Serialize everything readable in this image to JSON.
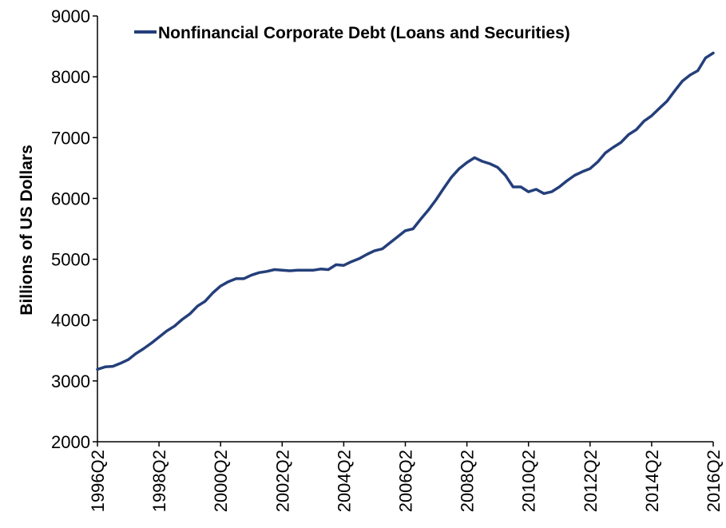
{
  "chart_data": {
    "type": "line",
    "title": "",
    "xlabel": "",
    "ylabel": "Billions of US Dollars",
    "ylim": [
      2000,
      9000
    ],
    "y_ticks": [
      "2000",
      "3000",
      "4000",
      "5000",
      "6000",
      "7000",
      "8000",
      "9000"
    ],
    "x_ticks": [
      "1996Q2",
      "1998Q2",
      "2000Q2",
      "2002Q2",
      "2004Q2",
      "2006Q2",
      "2008Q2",
      "2010Q2",
      "2012Q2",
      "2014Q2",
      "2016Q2"
    ],
    "grid": false,
    "legend_position": "top-left",
    "series": [
      {
        "name": "Nonfinancial Corporate Debt (Loans and Securities)",
        "color": "#243f7a",
        "x": [
          "1996Q2",
          "1996Q3",
          "1996Q4",
          "1997Q1",
          "1997Q2",
          "1997Q3",
          "1997Q4",
          "1998Q1",
          "1998Q2",
          "1998Q3",
          "1998Q4",
          "1999Q1",
          "1999Q2",
          "1999Q3",
          "1999Q4",
          "2000Q1",
          "2000Q2",
          "2000Q3",
          "2000Q4",
          "2001Q1",
          "2001Q2",
          "2001Q3",
          "2001Q4",
          "2002Q1",
          "2002Q2",
          "2002Q3",
          "2002Q4",
          "2003Q1",
          "2003Q2",
          "2003Q3",
          "2003Q4",
          "2004Q1",
          "2004Q2",
          "2004Q3",
          "2004Q4",
          "2005Q1",
          "2005Q2",
          "2005Q3",
          "2005Q4",
          "2006Q1",
          "2006Q2",
          "2006Q3",
          "2006Q4",
          "2007Q1",
          "2007Q2",
          "2007Q3",
          "2007Q4",
          "2008Q1",
          "2008Q2",
          "2008Q3",
          "2008Q4",
          "2009Q1",
          "2009Q2",
          "2009Q3",
          "2009Q4",
          "2010Q1",
          "2010Q2",
          "2010Q3",
          "2010Q4",
          "2011Q1",
          "2011Q2",
          "2011Q3",
          "2011Q4",
          "2012Q1",
          "2012Q2",
          "2012Q3",
          "2012Q4",
          "2013Q1",
          "2013Q2",
          "2013Q3",
          "2013Q4",
          "2014Q1",
          "2014Q2",
          "2014Q3",
          "2014Q4",
          "2015Q1",
          "2015Q2",
          "2015Q3",
          "2015Q4",
          "2016Q1",
          "2016Q2"
        ],
        "values": [
          3190,
          3230,
          3240,
          3290,
          3350,
          3450,
          3530,
          3620,
          3720,
          3820,
          3900,
          4010,
          4100,
          4230,
          4310,
          4450,
          4560,
          4630,
          4680,
          4680,
          4740,
          4780,
          4800,
          4830,
          4820,
          4810,
          4820,
          4820,
          4820,
          4840,
          4830,
          4910,
          4900,
          4960,
          5010,
          5080,
          5140,
          5170,
          5270,
          5370,
          5470,
          5500,
          5660,
          5810,
          5980,
          6170,
          6350,
          6490,
          6590,
          6670,
          6610,
          6570,
          6510,
          6380,
          6190,
          6190,
          6110,
          6150,
          6080,
          6110,
          6190,
          6290,
          6380,
          6440,
          6490,
          6600,
          6750,
          6840,
          6920,
          7050,
          7130,
          7270,
          7360,
          7480,
          7600,
          7770,
          7930,
          8030,
          8100,
          8310,
          8390
        ]
      }
    ]
  }
}
